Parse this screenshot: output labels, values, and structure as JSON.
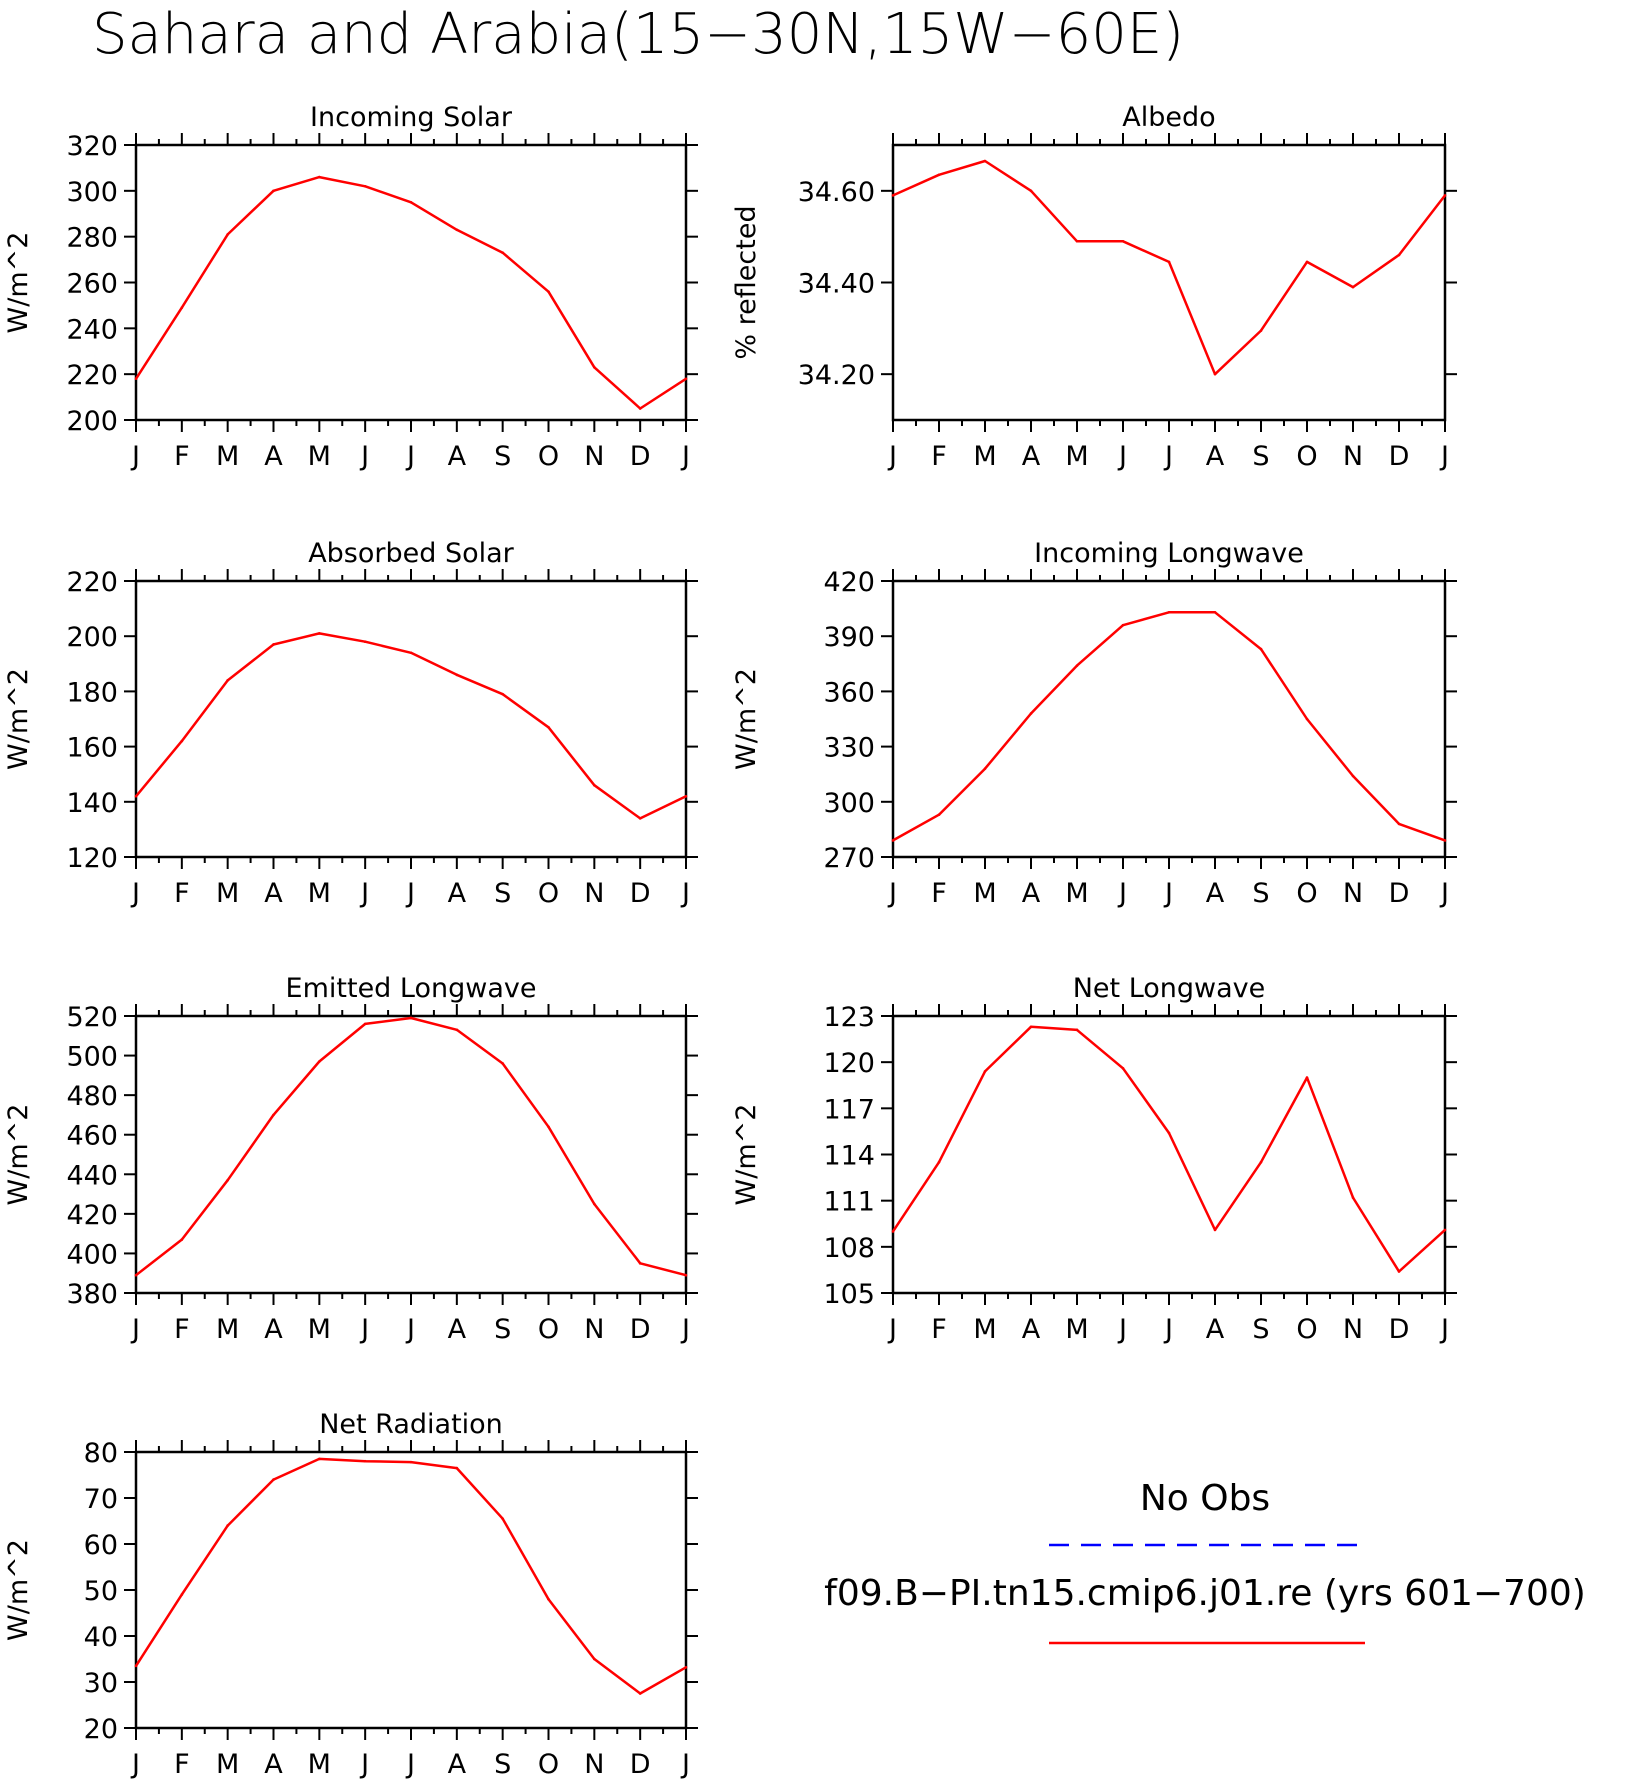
{
  "figure": {
    "title": "Sahara and Arabia(15−30N,15W−60E)"
  },
  "colors": {
    "model": "#ff0000",
    "obs": "#0000ff"
  },
  "legend": {
    "obs_label": "No Obs",
    "model_label": "f09.B−PI.tn15.cmip6.j01.re (yrs 601−700)"
  },
  "chart_data": [
    {
      "type": "line",
      "title": "Incoming Solar",
      "ylabel": "W/m^2",
      "x": [
        "J",
        "F",
        "M",
        "A",
        "M",
        "J",
        "J",
        "A",
        "S",
        "O",
        "N",
        "D",
        "J"
      ],
      "ylim": [
        200,
        320
      ],
      "yticks": [
        200,
        220,
        240,
        260,
        280,
        300,
        320
      ],
      "ytick_labels": [
        "200",
        "220",
        "240",
        "260",
        "280",
        "300",
        "320"
      ],
      "series": [
        {
          "values": [
            218,
            249,
            281,
            300,
            306,
            302,
            295,
            283,
            273,
            256,
            223,
            205,
            218
          ]
        }
      ]
    },
    {
      "type": "line",
      "title": "Albedo",
      "ylabel": "% reflected",
      "x": [
        "J",
        "F",
        "M",
        "A",
        "M",
        "J",
        "J",
        "A",
        "S",
        "O",
        "N",
        "D",
        "J"
      ],
      "ylim": [
        34.1,
        34.7
      ],
      "yticks": [
        34.2,
        34.4,
        34.6
      ],
      "ytick_labels": [
        "34.20",
        "34.40",
        "34.60"
      ],
      "series": [
        {
          "values": [
            34.59,
            34.635,
            34.665,
            34.6,
            34.49,
            34.49,
            34.445,
            34.2,
            34.295,
            34.445,
            34.39,
            34.46,
            34.59
          ]
        }
      ]
    },
    {
      "type": "line",
      "title": "Absorbed Solar",
      "ylabel": "W/m^2",
      "x": [
        "J",
        "F",
        "M",
        "A",
        "M",
        "J",
        "J",
        "A",
        "S",
        "O",
        "N",
        "D",
        "J"
      ],
      "ylim": [
        120,
        220
      ],
      "yticks": [
        120,
        140,
        160,
        180,
        200,
        220
      ],
      "ytick_labels": [
        "120",
        "140",
        "160",
        "180",
        "200",
        "220"
      ],
      "series": [
        {
          "values": [
            142,
            162,
            184,
            197,
            201,
            198,
            194,
            186,
            179,
            167,
            146,
            134,
            142
          ]
        }
      ]
    },
    {
      "type": "line",
      "title": "Incoming Longwave",
      "ylabel": "W/m^2",
      "x": [
        "J",
        "F",
        "M",
        "A",
        "M",
        "J",
        "J",
        "A",
        "S",
        "O",
        "N",
        "D",
        "J"
      ],
      "ylim": [
        270,
        420
      ],
      "yticks": [
        270,
        300,
        330,
        360,
        390,
        420
      ],
      "ytick_labels": [
        "270",
        "300",
        "330",
        "360",
        "390",
        "420"
      ],
      "series": [
        {
          "values": [
            279,
            293,
            318,
            348,
            374,
            396,
            403,
            403,
            383,
            345,
            314,
            288,
            279
          ]
        }
      ]
    },
    {
      "type": "line",
      "title": "Emitted Longwave",
      "ylabel": "W/m^2",
      "x": [
        "J",
        "F",
        "M",
        "A",
        "M",
        "J",
        "J",
        "A",
        "S",
        "O",
        "N",
        "D",
        "J"
      ],
      "ylim": [
        380,
        520
      ],
      "yticks": [
        380,
        400,
        420,
        440,
        460,
        480,
        500,
        520
      ],
      "ytick_labels": [
        "380",
        "400",
        "420",
        "440",
        "460",
        "480",
        "500",
        "520"
      ],
      "series": [
        {
          "values": [
            389,
            407,
            437,
            470,
            497,
            516,
            519,
            513,
            496,
            464,
            425,
            395,
            389
          ]
        }
      ]
    },
    {
      "type": "line",
      "title": "Net Longwave",
      "ylabel": "W/m^2",
      "x": [
        "J",
        "F",
        "M",
        "A",
        "M",
        "J",
        "J",
        "A",
        "S",
        "O",
        "N",
        "D",
        "J"
      ],
      "ylim": [
        105,
        123
      ],
      "yticks": [
        105,
        108,
        111,
        114,
        117,
        120,
        123
      ],
      "ytick_labels": [
        "105",
        "108",
        "111",
        "114",
        "117",
        "120",
        "123"
      ],
      "series": [
        {
          "values": [
            109,
            113.5,
            119.4,
            122.3,
            122.1,
            119.6,
            115.4,
            109.1,
            113.5,
            119.0,
            111.2,
            106.4,
            109.1
          ]
        }
      ]
    },
    {
      "type": "line",
      "title": "Net Radiation",
      "ylabel": "W/m^2",
      "x": [
        "J",
        "F",
        "M",
        "A",
        "M",
        "J",
        "J",
        "A",
        "S",
        "O",
        "N",
        "D",
        "J"
      ],
      "ylim": [
        20,
        80
      ],
      "yticks": [
        20,
        30,
        40,
        50,
        60,
        70,
        80
      ],
      "ytick_labels": [
        "20",
        "30",
        "40",
        "50",
        "60",
        "70",
        "80"
      ],
      "series": [
        {
          "values": [
            33.5,
            49,
            64,
            74,
            78.5,
            78,
            77.8,
            76.5,
            65.5,
            48,
            35,
            27.5,
            33.2
          ]
        }
      ]
    }
  ]
}
